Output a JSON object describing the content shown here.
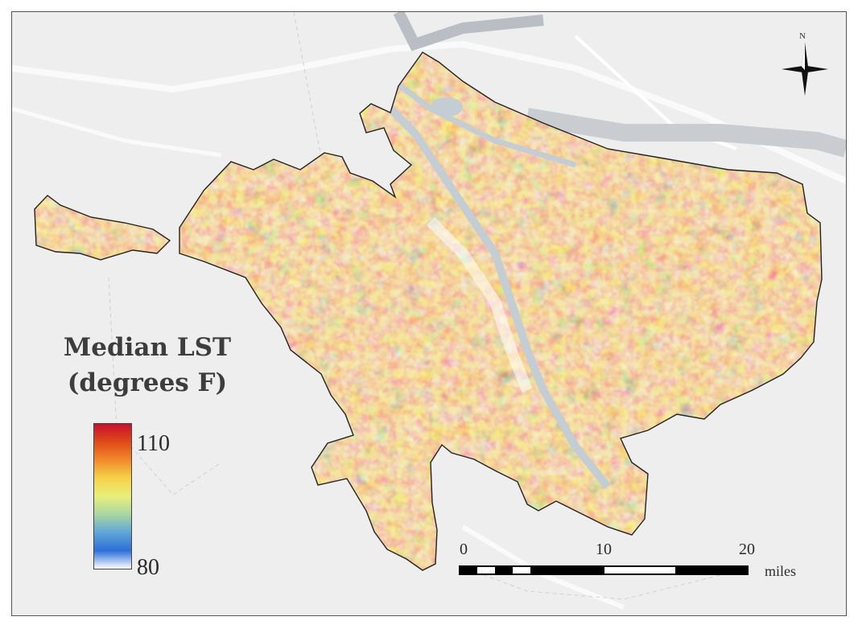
{
  "legend": {
    "title_line1": "Median LST",
    "title_line2": "(degrees F)",
    "max_label": "110",
    "min_label": "80",
    "ramp_colors": [
      "#c8102e",
      "#e04a1a",
      "#f08a2a",
      "#f6d24a",
      "#e8ef7a",
      "#a9d6a4",
      "#5fa6d8",
      "#2d6fd8",
      "#ffffff"
    ]
  },
  "scale_bar": {
    "labels": [
      "0",
      "10",
      "20"
    ],
    "unit": "miles"
  },
  "north_arrow": {
    "label": "N",
    "icon": "north-arrow-icon"
  },
  "colors": {
    "hot": "#c8102e",
    "warm": "#ef7b22",
    "mild": "#f4d04a",
    "cool": "#5b9ed8",
    "cold": "#2e6ad3",
    "river": "#c4ccd4",
    "basemap": "#eeeeee"
  }
}
